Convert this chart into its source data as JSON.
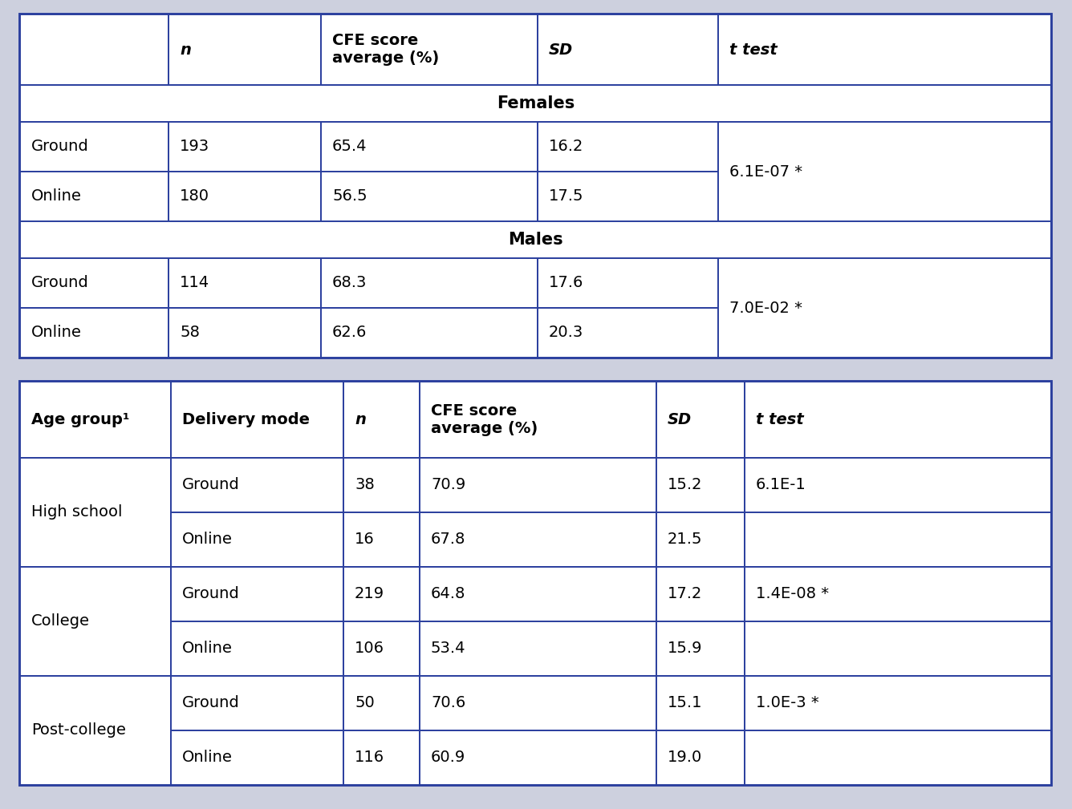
{
  "bg_color": "#cdd0de",
  "border_color": "#2b3f9e",
  "lw_outer": 2.8,
  "lw_inner": 1.4,
  "fs_hdr": 14,
  "fs_body": 14,
  "table1": {
    "headers": [
      "",
      "n",
      "CFE score\naverage (%)",
      "SD",
      "t test"
    ],
    "header_italic": [
      false,
      true,
      false,
      true,
      true
    ],
    "header_bold": [
      false,
      true,
      true,
      true,
      true
    ],
    "females_label": "Females",
    "males_label": "Males",
    "rows": [
      {
        "label": "Ground",
        "n": "193",
        "cfe": "65.4",
        "sd": "16.2",
        "t": "6.1E-07 *"
      },
      {
        "label": "Online",
        "n": "180",
        "cfe": "56.5",
        "sd": "17.5",
        "t": ""
      },
      {
        "label": "Ground",
        "n": "114",
        "cfe": "68.3",
        "sd": "17.6",
        "t": "7.0E-02 *"
      },
      {
        "label": "Online",
        "n": "58",
        "cfe": "62.6",
        "sd": "20.3",
        "t": ""
      }
    ]
  },
  "table2": {
    "headers": [
      "Age group¹",
      "Delivery mode",
      "n",
      "CFE score\naverage (%)",
      "SD",
      "t test"
    ],
    "header_italic": [
      false,
      false,
      true,
      false,
      true,
      true
    ],
    "header_bold": [
      true,
      true,
      true,
      true,
      true,
      true
    ],
    "rows": [
      {
        "age": "High school",
        "mode": "Ground",
        "n": "38",
        "cfe": "70.9",
        "sd": "15.2",
        "t": "6.1E-1"
      },
      {
        "age": "High school",
        "mode": "Online",
        "n": "16",
        "cfe": "67.8",
        "sd": "21.5",
        "t": ""
      },
      {
        "age": "College",
        "mode": "Ground",
        "n": "219",
        "cfe": "64.8",
        "sd": "17.2",
        "t": "1.4E-08 *"
      },
      {
        "age": "College",
        "mode": "Online",
        "n": "106",
        "cfe": "53.4",
        "sd": "15.9",
        "t": ""
      },
      {
        "age": "Post-college",
        "mode": "Ground",
        "n": "50",
        "cfe": "70.6",
        "sd": "15.1",
        "t": "1.0E-3 *"
      },
      {
        "age": "Post-college",
        "mode": "Online",
        "n": "116",
        "cfe": "60.9",
        "sd": "19.0",
        "t": ""
      }
    ]
  }
}
